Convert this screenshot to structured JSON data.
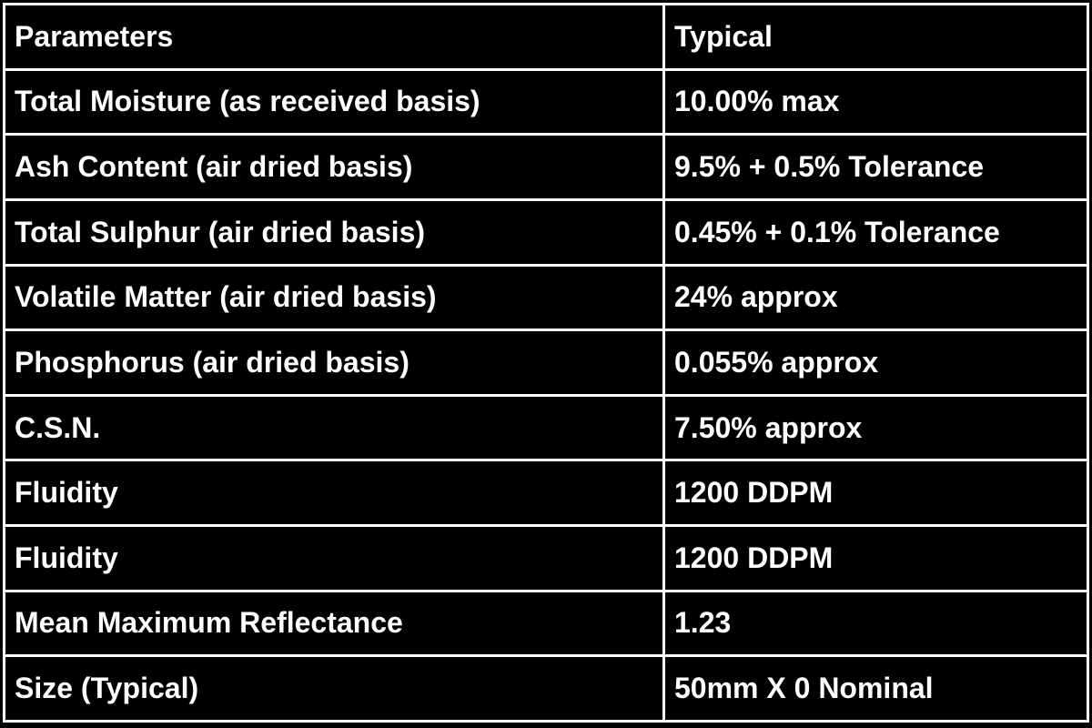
{
  "table": {
    "header": [
      "Parameters",
      "Typical"
    ],
    "rows": [
      [
        "Total Moisture (as received basis)",
        "10.00% max"
      ],
      [
        "Ash Content (air dried basis)",
        "9.5% + 0.5% Tolerance"
      ],
      [
        "Total Sulphur (air dried basis)",
        "0.45% + 0.1% Tolerance"
      ],
      [
        "Volatile Matter (air dried basis)",
        "24% approx"
      ],
      [
        "Phosphorus (air dried basis)",
        "0.055% approx"
      ],
      [
        "C.S.N.",
        "7.50% approx"
      ],
      [
        "Fluidity",
        "1200 DDPM"
      ],
      [
        "Fluidity",
        "1200 DDPM"
      ],
      [
        "Mean Maximum Reflectance",
        "1.23"
      ],
      [
        "Size (Typical)",
        "50mm X 0 Nominal"
      ]
    ]
  }
}
